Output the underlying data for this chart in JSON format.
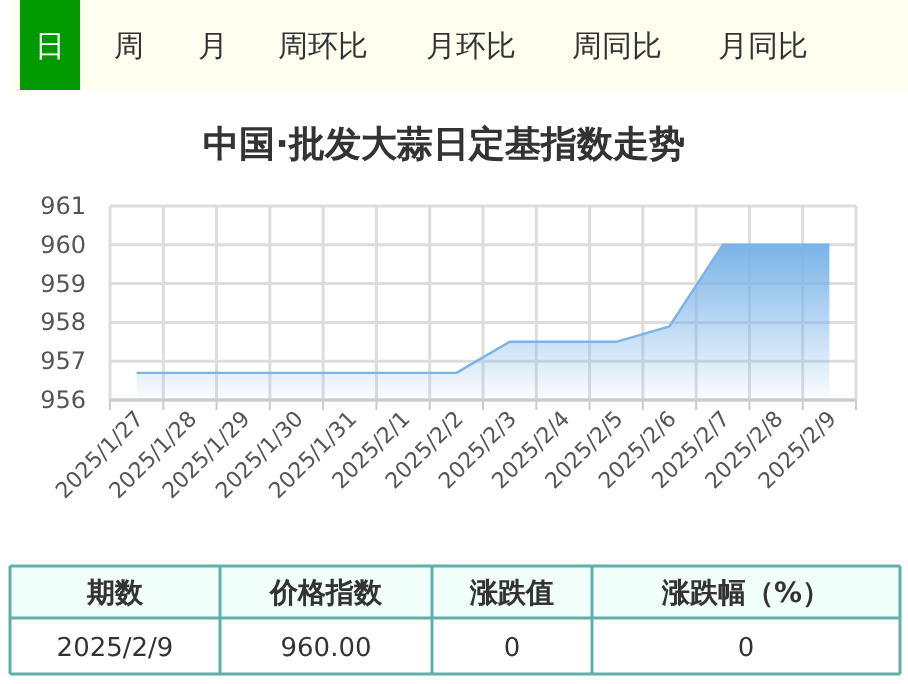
{
  "chart_data": {
    "type": "area",
    "title": "中国·批发大蒜日定基指数走势",
    "categories": [
      "2025/1/27",
      "2025/1/28",
      "2025/1/29",
      "2025/1/30",
      "2025/1/31",
      "2025/2/1",
      "2025/2/2",
      "2025/2/3",
      "2025/2/4",
      "2025/2/5",
      "2025/2/6",
      "2025/2/7",
      "2025/2/8",
      "2025/2/9"
    ],
    "values": [
      956.7,
      956.7,
      956.7,
      956.7,
      956.7,
      956.7,
      956.7,
      957.5,
      957.5,
      957.5,
      957.9,
      960,
      960,
      960
    ],
    "color": "#7ab4e8",
    "ylim": [
      956,
      961
    ],
    "yticks": [
      956,
      957,
      958,
      959,
      960,
      961
    ],
    "grid": true,
    "annotations": [
      "日",
      "周",
      "月",
      "周环比",
      "月环比",
      "周同比",
      "月同比",
      "期数",
      "价格指数",
      "涨跌值",
      "涨跌幅（%）",
      "2025/2/9",
      "960.00",
      "0",
      "0"
    ]
  }
}
